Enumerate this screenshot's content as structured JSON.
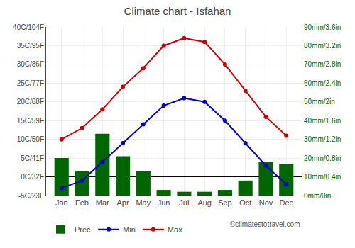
{
  "chart_data": {
    "type": "bar",
    "title": "Climate chart - Isfahan",
    "categories": [
      "Jan",
      "Feb",
      "Mar",
      "Apr",
      "May",
      "Jun",
      "Jul",
      "Aug",
      "Sep",
      "Oct",
      "Nov",
      "Dec"
    ],
    "series": [
      {
        "name": "Prec",
        "type": "bar",
        "axis": "y2",
        "color": "#006600",
        "values": [
          20,
          13,
          33,
          21,
          13,
          3,
          2,
          2,
          3,
          8,
          18,
          17
        ]
      },
      {
        "name": "Min",
        "type": "line",
        "marker": "circle",
        "color": "#0000cc",
        "values": [
          -3,
          -1,
          4,
          9,
          14,
          19,
          21,
          20,
          15,
          9,
          3,
          -2
        ]
      },
      {
        "name": "Max",
        "type": "line",
        "marker": "circle",
        "color": "#cc0000",
        "values": [
          10,
          13,
          18,
          24,
          29,
          35,
          37,
          36,
          30,
          23,
          16,
          11
        ]
      }
    ],
    "ylim": [
      -5,
      40
    ],
    "yticks": [
      {
        "value": -5,
        "label": "-5C/23F"
      },
      {
        "value": 0,
        "label": "0C/32F"
      },
      {
        "value": 5,
        "label": "5C/41F"
      },
      {
        "value": 10,
        "label": "10C/50F"
      },
      {
        "value": 15,
        "label": "15C/59F"
      },
      {
        "value": 20,
        "label": "20C/68F"
      },
      {
        "value": 25,
        "label": "25C/77F"
      },
      {
        "value": 30,
        "label": "30C/86F"
      },
      {
        "value": 35,
        "label": "35C/95F"
      },
      {
        "value": 40,
        "label": "40C/104F"
      }
    ],
    "y2lim": [
      0,
      90
    ],
    "y2ticks": [
      {
        "value": 0,
        "label": "0mm/0in"
      },
      {
        "value": 10,
        "label": "10mm/0.4in"
      },
      {
        "value": 20,
        "label": "20mm/0.8in"
      },
      {
        "value": 30,
        "label": "30mm/1.2in"
      },
      {
        "value": 40,
        "label": "40mm/1.6in"
      },
      {
        "value": 50,
        "label": "50mm/2in"
      },
      {
        "value": 60,
        "label": "60mm/2.4in"
      },
      {
        "value": 70,
        "label": "70mm/2.8in"
      },
      {
        "value": 80,
        "label": "80mm/3.2in"
      },
      {
        "value": 90,
        "label": "90mm/3.6in"
      }
    ],
    "grid": true,
    "legend": "lower left",
    "annotations": [
      "©climatestotravel.com"
    ]
  }
}
